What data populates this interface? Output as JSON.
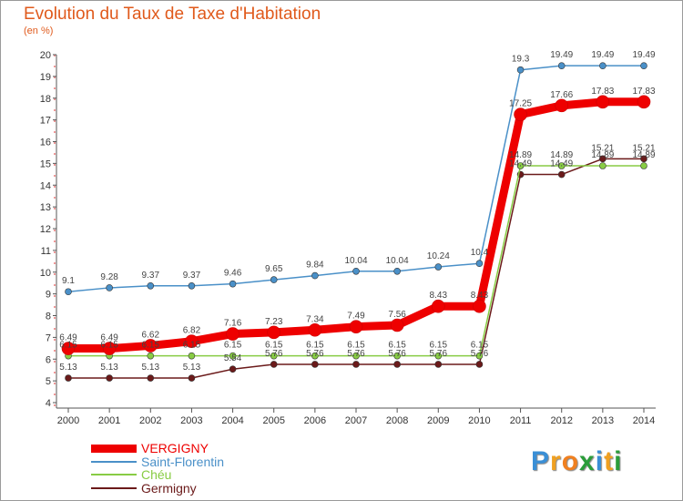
{
  "title": "Evolution du Taux de Taxe d'Habitation",
  "subtitle": "(en %)",
  "logo": {
    "text": "Proxiti",
    "letter_colors": [
      "#3a8fd6",
      "#f0a020",
      "#f08020",
      "#2a9d3a",
      "#3a8fd6",
      "#f0a020",
      "#2a9d3a"
    ]
  },
  "chart_data": {
    "type": "line",
    "x": [
      2000,
      2001,
      2002,
      2003,
      2004,
      2005,
      2006,
      2007,
      2008,
      2009,
      2010,
      2011,
      2012,
      2013,
      2014
    ],
    "ylim": [
      4,
      20
    ],
    "yticks": [
      4,
      5,
      6,
      7,
      8,
      9,
      10,
      11,
      12,
      13,
      14,
      15,
      16,
      17,
      18,
      19,
      20
    ],
    "grid": false,
    "legend_position": "bottom-left",
    "series": [
      {
        "name": "VERGIGNY",
        "color": "#ee0000",
        "values": [
          6.49,
          6.49,
          6.62,
          6.82,
          7.16,
          7.23,
          7.34,
          7.49,
          7.56,
          8.43,
          8.43,
          17.25,
          17.66,
          17.83,
          17.83
        ],
        "labels": [
          "6.49",
          "6.49",
          "6.62",
          "6.82",
          "7.16",
          "7.23",
          "7.34",
          "7.49",
          "7.56",
          "8.43",
          "8.43",
          "17.25",
          "17.66",
          "17.83",
          "17.83"
        ]
      },
      {
        "name": "Saint-Florentin",
        "color": "#4a90c8",
        "values": [
          9.1,
          9.28,
          9.37,
          9.37,
          9.46,
          9.65,
          9.84,
          10.04,
          10.04,
          10.24,
          10.4,
          19.3,
          19.49,
          19.49,
          19.49
        ],
        "labels": [
          "9.1",
          "9.28",
          "9.37",
          "9.37",
          "9.46",
          "9.65",
          "9.84",
          "10.04",
          "10.04",
          "10.24",
          "10.4",
          "19.3",
          "19.49",
          "19.49",
          "19.49"
        ]
      },
      {
        "name": "Chéu",
        "color": "#88cc44",
        "values": [
          6.15,
          6.15,
          6.15,
          6.15,
          6.15,
          6.15,
          6.15,
          6.15,
          6.15,
          6.15,
          6.15,
          14.89,
          14.89,
          14.89,
          14.89
        ],
        "labels": [
          "6.15",
          "6.15",
          "6.15",
          "6.15",
          "6.15",
          "6.15",
          "6.15",
          "6.15",
          "6.15",
          "6.15",
          "6.15",
          "14.89",
          "14.89",
          "14.89",
          "14.89"
        ]
      },
      {
        "name": "Germigny",
        "color": "#6b1a1a",
        "values": [
          5.13,
          5.13,
          5.13,
          5.13,
          5.54,
          5.76,
          5.76,
          5.76,
          5.76,
          5.76,
          5.76,
          14.49,
          14.49,
          15.21,
          15.21
        ],
        "labels": [
          "5.13",
          "5.13",
          "5.13",
          "5.13",
          "5.54",
          "5.76",
          "5.76",
          "5.76",
          "5.76",
          "5.76",
          "5.76",
          "14.49",
          "14.49",
          "15.21",
          "15.21"
        ]
      }
    ]
  }
}
